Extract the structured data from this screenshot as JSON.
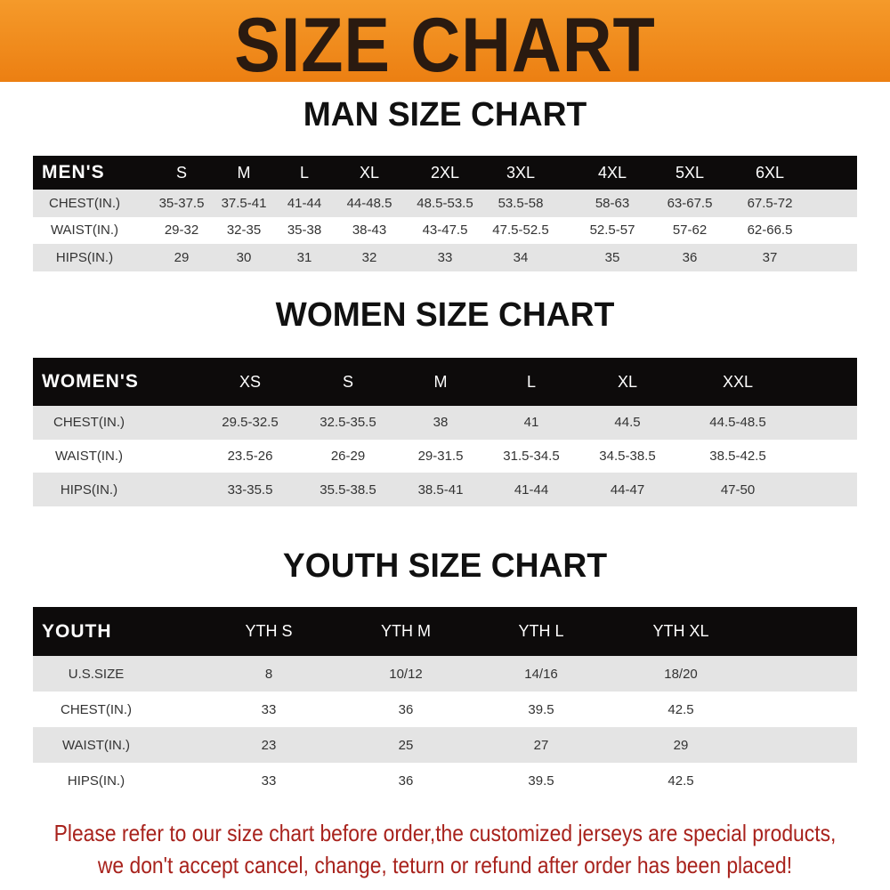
{
  "banner_title": "SIZE CHART",
  "men": {
    "title": "MAN SIZE CHART",
    "header": [
      "MEN'S",
      "S",
      "M",
      "L",
      "XL",
      "2XL",
      "3XL",
      "4XL",
      "5XL",
      "6XL"
    ],
    "rows": [
      [
        "CHEST(IN.)",
        "35-37.5",
        "37.5-41",
        "41-44",
        "44-48.5",
        "48.5-53.5",
        "53.5-58",
        "58-63",
        "63-67.5",
        "67.5-72"
      ],
      [
        "WAIST(IN.)",
        "29-32",
        "32-35",
        "35-38",
        "38-43",
        "43-47.5",
        "47.5-52.5",
        "52.5-57",
        "57-62",
        "62-66.5"
      ],
      [
        "HIPS(IN.)",
        "29",
        "30",
        "31",
        "32",
        "33",
        "34",
        "35",
        "36",
        "37"
      ]
    ]
  },
  "women": {
    "title": "WOMEN SIZE CHART",
    "header": [
      "WOMEN'S",
      "XS",
      "S",
      "M",
      "L",
      "XL",
      "XXL"
    ],
    "rows": [
      [
        "CHEST(IN.)",
        "29.5-32.5",
        "32.5-35.5",
        "38",
        "41",
        "44.5",
        "44.5-48.5"
      ],
      [
        "WAIST(IN.)",
        "23.5-26",
        "26-29",
        "29-31.5",
        "31.5-34.5",
        "34.5-38.5",
        "38.5-42.5"
      ],
      [
        "HIPS(IN.)",
        "33-35.5",
        "35.5-38.5",
        "38.5-41",
        "41-44",
        "44-47",
        "47-50"
      ]
    ]
  },
  "youth": {
    "title": "YOUTH SIZE CHART",
    "header": [
      "YOUTH",
      "YTH S",
      "YTH M",
      "YTH L",
      "YTH XL"
    ],
    "rows": [
      [
        "U.S.SIZE",
        "8",
        "10/12",
        "14/16",
        "18/20"
      ],
      [
        "CHEST(IN.)",
        "33",
        "36",
        "39.5",
        "42.5"
      ],
      [
        "WAIST(IN.)",
        "23",
        "25",
        "27",
        "29"
      ],
      [
        "HIPS(IN.)",
        "33",
        "36",
        "39.5",
        "42.5"
      ]
    ]
  },
  "footer": {
    "line1": "Please refer to our size chart before order,the customized jerseys are special products,",
    "line2": "we don't accept cancel, change, teturn or refund after order has been placed!"
  },
  "colors": {
    "banner": "#ef8a1c",
    "header_row": "#0d0b0b",
    "stripe": "#e4e4e4",
    "footer_text": "#a8221c"
  }
}
